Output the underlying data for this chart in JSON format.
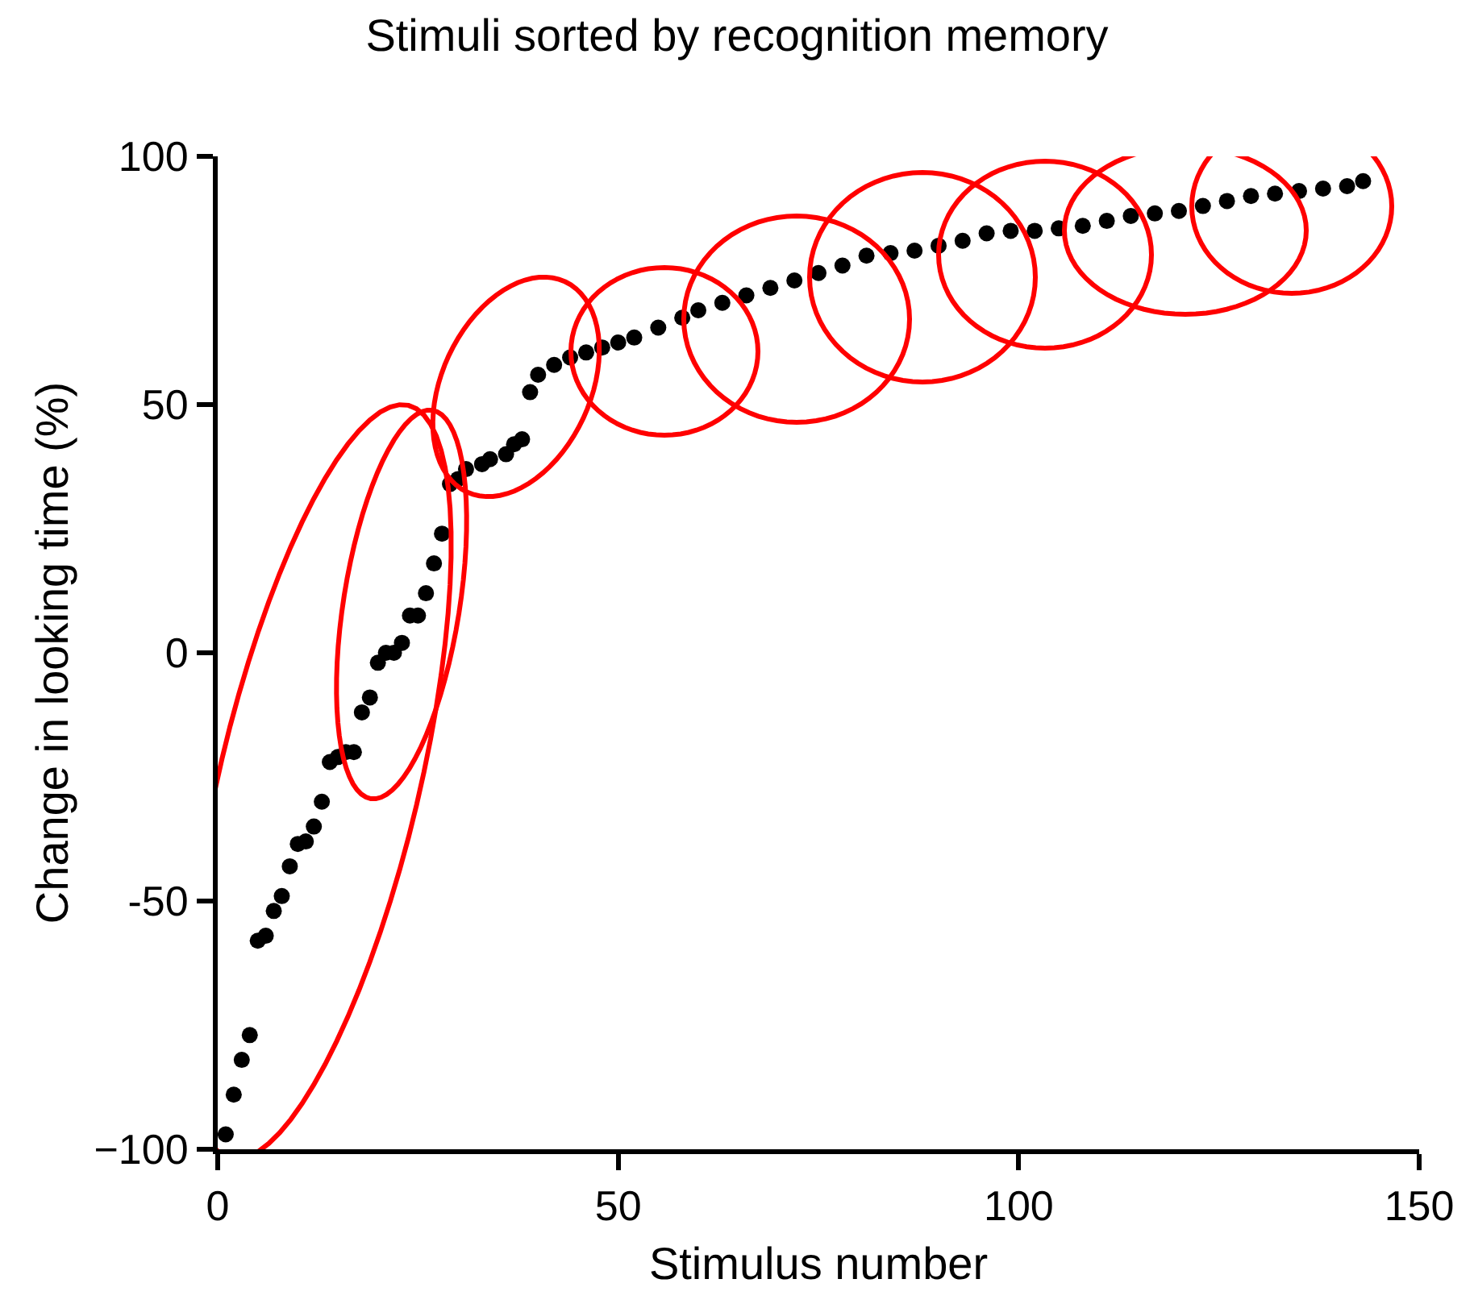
{
  "chart_data": {
    "type": "scatter",
    "title": "Stimuli sorted by recognition memory",
    "xlabel": "Stimulus number",
    "ylabel": "Change in looking time (%)",
    "x": [
      1,
      2,
      3,
      4,
      5,
      6,
      7,
      8,
      9,
      10,
      11,
      12,
      13,
      14,
      15,
      16,
      17,
      18,
      19,
      20,
      21,
      22,
      23,
      24,
      25,
      26,
      27,
      28,
      29,
      30,
      31,
      33,
      34,
      36,
      37,
      38,
      39,
      40,
      42,
      44,
      46,
      48,
      50,
      52,
      55,
      58,
      60,
      63,
      66,
      69,
      72,
      75,
      78,
      81,
      84,
      87,
      90,
      93,
      96,
      99,
      102,
      105,
      108,
      111,
      114,
      117,
      120,
      123,
      126,
      129,
      132,
      135,
      138,
      141,
      143
    ],
    "series": [
      {
        "color": "#000000",
        "values": [
          -97,
          -89,
          -82,
          -77,
          -58,
          -57,
          -52,
          -49,
          -43,
          -38.5,
          -38,
          -35,
          -30,
          -22,
          -21,
          -20,
          -20,
          -12,
          -9,
          -2,
          0,
          0,
          2,
          7.5,
          7.5,
          12,
          18,
          24,
          34,
          35,
          37,
          38,
          39,
          40,
          42,
          43,
          52.5,
          56,
          58,
          59.5,
          60.5,
          61.5,
          62.5,
          63.5,
          65.5,
          67.5,
          69,
          70.5,
          72,
          73.5,
          75,
          76.5,
          78,
          80,
          80.5,
          81,
          82,
          83,
          84.5,
          85,
          85,
          85.5,
          86,
          87,
          88,
          88.5,
          89,
          90,
          91,
          92,
          92.5,
          93,
          93.5,
          94,
          95
        ]
      }
    ],
    "xlim": [
      0,
      150
    ],
    "ylim": [
      -100,
      100
    ],
    "xticks": [
      0,
      50,
      100,
      150
    ],
    "yticks": [
      {
        "value": -100,
        "label": "−100"
      },
      {
        "value": -50,
        "label": "-50"
      },
      0,
      50,
      100
    ],
    "marker": "circle"
  }
}
